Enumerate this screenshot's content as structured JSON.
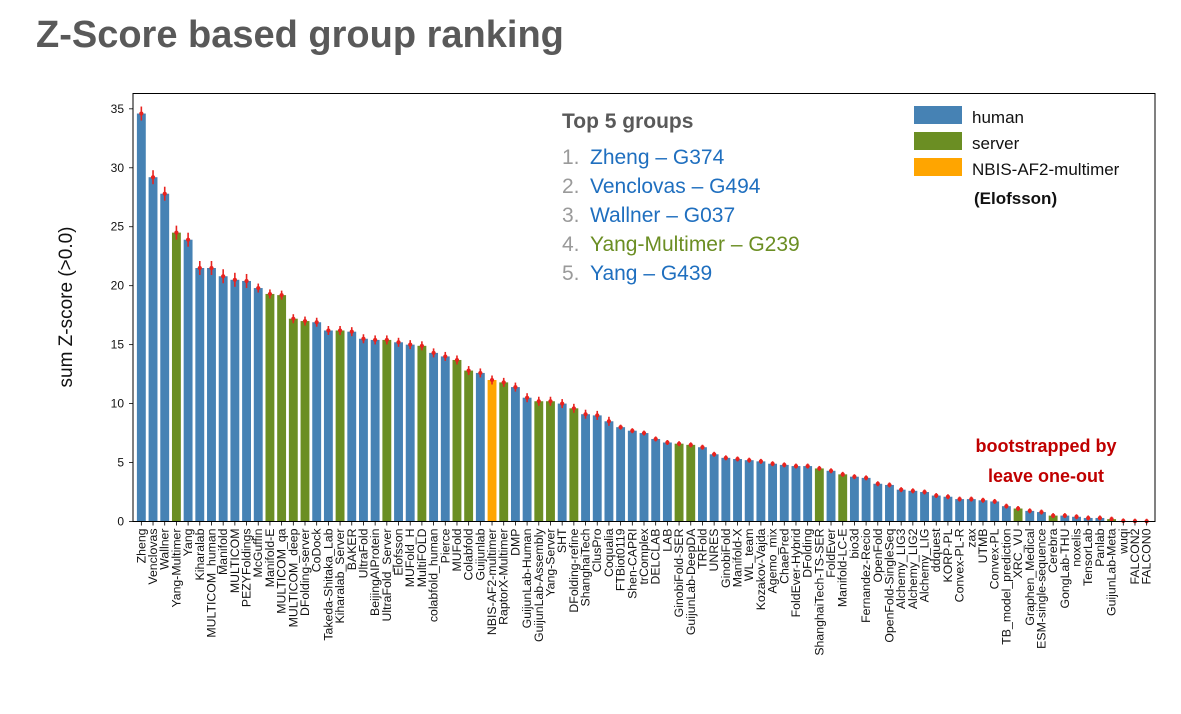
{
  "page_title": "Z-Score based group ranking",
  "chart_data": {
    "type": "bar",
    "ylabel": "sum Z-score (>0.0)",
    "xlabel": "",
    "ylim": [
      0,
      36.3
    ],
    "yticks": [
      0,
      5,
      10,
      15,
      20,
      25,
      30,
      35
    ],
    "grid": false,
    "legend": {
      "placement": "top-right",
      "entries": [
        {
          "key": "human",
          "label": "human",
          "color": "#4682b4"
        },
        {
          "key": "server",
          "label": "server",
          "color": "#6b8e23"
        },
        {
          "key": "nbis",
          "label": "NBIS-AF2-multimer",
          "color": "#ffa500"
        }
      ],
      "note": "(Elofsson)"
    },
    "annotations": {
      "top5_title": "Top 5 groups",
      "top5": [
        {
          "num": "1.",
          "text": "Zheng – G374",
          "color": "#1f6fbf"
        },
        {
          "num": "2.",
          "text": "Venclovas – G494",
          "color": "#1f6fbf"
        },
        {
          "num": "3.",
          "text": "Wallner – G037",
          "color": "#1f6fbf"
        },
        {
          "num": "4.",
          "text": "Yang-Multimer – G239",
          "color": "#6b8e23"
        },
        {
          "num": "5.",
          "text": "Yang – G439",
          "color": "#1f6fbf"
        }
      ],
      "bootstrap_line1": "bootstrapped by",
      "bootstrap_line2": "leave one-out",
      "bootstrap_color": "#c00000"
    },
    "error_color": "#e8231f",
    "bars": [
      {
        "label": "Zheng",
        "value": 34.6,
        "type": "human"
      },
      {
        "label": "Venclovas",
        "value": 29.2,
        "type": "human"
      },
      {
        "label": "Wallner",
        "value": 27.8,
        "type": "human"
      },
      {
        "label": "Yang-Multimer",
        "value": 24.5,
        "type": "server"
      },
      {
        "label": "Yang",
        "value": 23.9,
        "type": "human"
      },
      {
        "label": "Kiharalab",
        "value": 21.5,
        "type": "human"
      },
      {
        "label": "MULTICOM_human",
        "value": 21.5,
        "type": "human"
      },
      {
        "label": "Manifold",
        "value": 20.8,
        "type": "human"
      },
      {
        "label": "MULTICOM",
        "value": 20.5,
        "type": "human"
      },
      {
        "label": "PEZYFoldings",
        "value": 20.4,
        "type": "human"
      },
      {
        "label": "McGuffin",
        "value": 19.8,
        "type": "human"
      },
      {
        "label": "Manifold-E",
        "value": 19.3,
        "type": "server"
      },
      {
        "label": "MULTICOM_qa",
        "value": 19.2,
        "type": "server"
      },
      {
        "label": "MULTICOM_deep",
        "value": 17.2,
        "type": "server"
      },
      {
        "label": "DFolding-server",
        "value": 17.0,
        "type": "server"
      },
      {
        "label": "CoDock",
        "value": 16.9,
        "type": "human"
      },
      {
        "label": "Takeda-Shitaka_Lab",
        "value": 16.2,
        "type": "human"
      },
      {
        "label": "Kiharalab_Server",
        "value": 16.2,
        "type": "server"
      },
      {
        "label": "BAKER",
        "value": 16.1,
        "type": "human"
      },
      {
        "label": "UltraFold",
        "value": 15.5,
        "type": "human"
      },
      {
        "label": "BeijingAIProtein",
        "value": 15.4,
        "type": "human"
      },
      {
        "label": "UltraFold_Server",
        "value": 15.4,
        "type": "server"
      },
      {
        "label": "Elofsson",
        "value": 15.2,
        "type": "human"
      },
      {
        "label": "MUFold_H",
        "value": 15.0,
        "type": "human"
      },
      {
        "label": "MultiFOLD",
        "value": 14.9,
        "type": "server"
      },
      {
        "label": "colabfold_human",
        "value": 14.3,
        "type": "human"
      },
      {
        "label": "Pierce",
        "value": 14.0,
        "type": "human"
      },
      {
        "label": "MUFold",
        "value": 13.7,
        "type": "server"
      },
      {
        "label": "Colabfold",
        "value": 12.8,
        "type": "server"
      },
      {
        "label": "Guijunlab",
        "value": 12.6,
        "type": "human"
      },
      {
        "label": "NBIS-AF2-multimer",
        "value": 12.0,
        "type": "nbis"
      },
      {
        "label": "RaptorX-Multimer",
        "value": 11.8,
        "type": "server"
      },
      {
        "label": "DMP",
        "value": 11.4,
        "type": "human"
      },
      {
        "label": "GuijunLab-Human",
        "value": 10.5,
        "type": "human"
      },
      {
        "label": "GuijunLab-Assembly",
        "value": 10.2,
        "type": "server"
      },
      {
        "label": "Yang-Server",
        "value": 10.2,
        "type": "server"
      },
      {
        "label": "SHT",
        "value": 10.0,
        "type": "human"
      },
      {
        "label": "DFolding-refine",
        "value": 9.6,
        "type": "server"
      },
      {
        "label": "ShanghaiTech",
        "value": 9.1,
        "type": "human"
      },
      {
        "label": "ClusPro",
        "value": 9.0,
        "type": "human"
      },
      {
        "label": "Coqualia",
        "value": 8.5,
        "type": "human"
      },
      {
        "label": "FTBiot0119",
        "value": 8.0,
        "type": "human"
      },
      {
        "label": "Shen-CAPRI",
        "value": 7.7,
        "type": "human"
      },
      {
        "label": "trComplex",
        "value": 7.5,
        "type": "human"
      },
      {
        "label": "DELCLAB",
        "value": 7.0,
        "type": "human"
      },
      {
        "label": "LAB",
        "value": 6.7,
        "type": "human"
      },
      {
        "label": "GinobiFold-SER",
        "value": 6.6,
        "type": "server"
      },
      {
        "label": "GuijunLab-DeepDA",
        "value": 6.5,
        "type": "server"
      },
      {
        "label": "TRFold",
        "value": 6.3,
        "type": "human"
      },
      {
        "label": "UNRES",
        "value": 5.7,
        "type": "human"
      },
      {
        "label": "GinobiFold",
        "value": 5.4,
        "type": "human"
      },
      {
        "label": "Manifold-X",
        "value": 5.3,
        "type": "human"
      },
      {
        "label": "WL_team",
        "value": 5.2,
        "type": "human"
      },
      {
        "label": "Kozakov-Vajda",
        "value": 5.1,
        "type": "human"
      },
      {
        "label": "Agemo_mix",
        "value": 4.9,
        "type": "human"
      },
      {
        "label": "ChaePred",
        "value": 4.8,
        "type": "human"
      },
      {
        "label": "FoldEver-Hybrid",
        "value": 4.7,
        "type": "human"
      },
      {
        "label": "DFolding",
        "value": 4.7,
        "type": "human"
      },
      {
        "label": "ShanghaiTech-TS-SER",
        "value": 4.5,
        "type": "server"
      },
      {
        "label": "FoldEver",
        "value": 4.3,
        "type": "human"
      },
      {
        "label": "Manifold-LC-E",
        "value": 4.0,
        "type": "server"
      },
      {
        "label": "bio3d",
        "value": 3.8,
        "type": "human"
      },
      {
        "label": "Fernandez-Recio",
        "value": 3.7,
        "type": "human"
      },
      {
        "label": "OpenFold",
        "value": 3.2,
        "type": "human"
      },
      {
        "label": "OpenFold-SingleSeq",
        "value": 3.1,
        "type": "human"
      },
      {
        "label": "Alchemy_LIG3",
        "value": 2.7,
        "type": "human"
      },
      {
        "label": "Alchemy_LIG2",
        "value": 2.6,
        "type": "human"
      },
      {
        "label": "Alchemy_LIG",
        "value": 2.5,
        "type": "human"
      },
      {
        "label": "ddquest",
        "value": 2.2,
        "type": "human"
      },
      {
        "label": "KORP-PL",
        "value": 2.1,
        "type": "human"
      },
      {
        "label": "Convex-PL-R",
        "value": 1.9,
        "type": "human"
      },
      {
        "label": "zax",
        "value": 1.9,
        "type": "human"
      },
      {
        "label": "UTMB",
        "value": 1.8,
        "type": "human"
      },
      {
        "label": "Convex-PL",
        "value": 1.7,
        "type": "human"
      },
      {
        "label": "TB_model_prediction",
        "value": 1.3,
        "type": "human"
      },
      {
        "label": "XRC_VU",
        "value": 1.1,
        "type": "server"
      },
      {
        "label": "Graphen_Medical",
        "value": 0.9,
        "type": "human"
      },
      {
        "label": "ESM-single-sequence",
        "value": 0.8,
        "type": "human"
      },
      {
        "label": "Cerebra",
        "value": 0.5,
        "type": "server"
      },
      {
        "label": "GongLab-THU",
        "value": 0.5,
        "type": "human"
      },
      {
        "label": "noxelis",
        "value": 0.4,
        "type": "human"
      },
      {
        "label": "TensorLab",
        "value": 0.3,
        "type": "human"
      },
      {
        "label": "Panlab",
        "value": 0.3,
        "type": "human"
      },
      {
        "label": "GuijunLab-Meta",
        "value": 0.2,
        "type": "server"
      },
      {
        "label": "wuqi",
        "value": 0.05,
        "type": "human"
      },
      {
        "label": "FALCON2",
        "value": 0.03,
        "type": "human"
      },
      {
        "label": "FALCON0",
        "value": 0.02,
        "type": "human"
      }
    ]
  }
}
